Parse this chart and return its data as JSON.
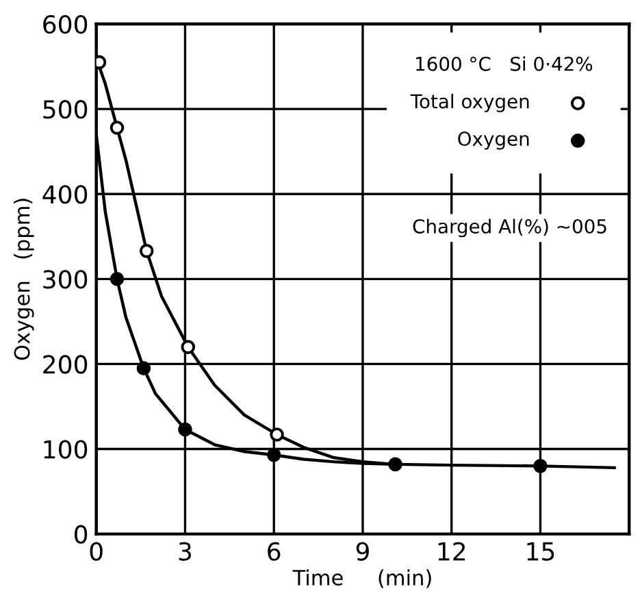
{
  "chart_data": {
    "type": "line",
    "xlabel": "Time     (min)",
    "ylabel": "Oxygen   (ppm)",
    "legend_title": "1600 °C   Si 0·42%",
    "annotations": [
      "Charged Al(%) ~005"
    ],
    "xlim": [
      0,
      18
    ],
    "ylim": [
      0,
      600
    ],
    "xticks": [
      0,
      3,
      6,
      9,
      12,
      15
    ],
    "yticks": [
      0,
      100,
      200,
      300,
      400,
      500,
      600
    ],
    "grid": true,
    "legend": "top right",
    "series": [
      {
        "color": "#000000",
        "marker": "none",
        "x": [
          0,
          0.3,
          0.7,
          1,
          1.7,
          2.2,
          3.1,
          4,
          5,
          6.1,
          7,
          8,
          9,
          10
        ],
        "values": [
          560,
          530,
          478,
          440,
          333,
          280,
          220,
          175,
          140,
          117,
          102,
          90,
          85,
          82
        ]
      },
      {
        "color": "#000000",
        "marker": "none",
        "x": [
          0,
          0.3,
          0.7,
          1,
          1.6,
          2,
          3,
          4,
          5,
          6,
          7,
          8,
          9,
          10.1,
          12,
          15,
          17.5
        ],
        "values": [
          470,
          380,
          300,
          255,
          195,
          165,
          123,
          105,
          97,
          93,
          88,
          85,
          83,
          82,
          81,
          80,
          78
        ]
      },
      {
        "name": "Total oxygen",
        "type": "scatter",
        "color": "#ffffff",
        "marker": "circle",
        "x": [
          0.1,
          0.7,
          1.7,
          3.1,
          6.1
        ],
        "values": [
          555,
          478,
          333,
          220,
          117
        ]
      },
      {
        "name": "Oxygen",
        "type": "scatter",
        "color": "#000000",
        "marker": "circle",
        "x": [
          0.7,
          1.6,
          3.0,
          6.0,
          10.1,
          15
        ],
        "values": [
          300,
          195,
          123,
          93,
          82,
          80
        ]
      }
    ]
  }
}
